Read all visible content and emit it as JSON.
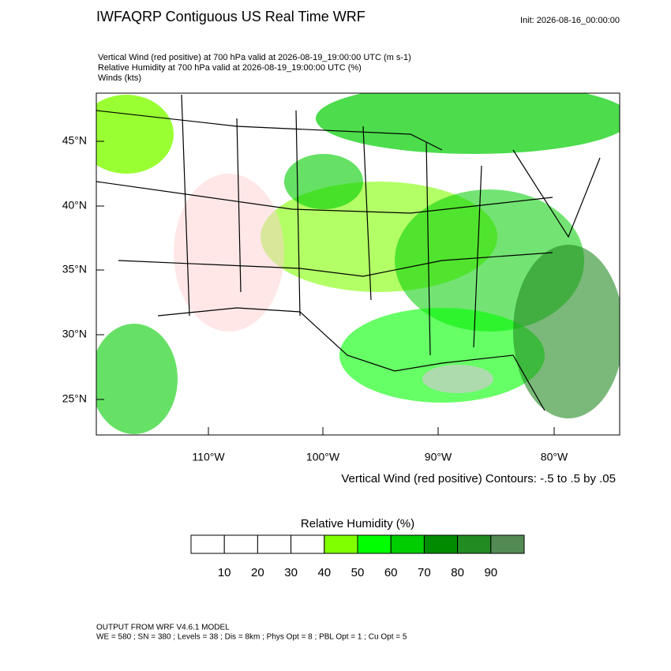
{
  "header": {
    "title": "IWFAQRP Contiguous US Real Time WRF",
    "init": "Init: 2026-08-16_00:00:00"
  },
  "subtitles": [
    "Vertical Wind (red positive) at 700 hPa valid at 2026-08-19_19:00:00 UTC   (m s-1)",
    "Relative Humidity at 700 hPa valid at 2026-08-19_19:00:00 UTC   (%)",
    "Winds   (kts)"
  ],
  "map": {
    "lat_labels": [
      "45°N",
      "40°N",
      "35°N",
      "30°N",
      "25°N"
    ],
    "lon_labels": [
      "110°W",
      "100°W",
      "90°W",
      "80°W"
    ],
    "contour_note": "Vertical Wind (red positive) Contours: -.5 to .5 by .05"
  },
  "colorbar": {
    "title": "Relative Humidity  (%)",
    "colors": [
      "#ffffff",
      "#ffffff",
      "#ffffff",
      "#ffffff",
      "#80ff00",
      "#00ff00",
      "#00cd00",
      "#008b00",
      "#228b22",
      "#548b54"
    ],
    "labels": [
      10,
      20,
      30,
      40,
      50,
      60,
      70,
      80,
      90
    ]
  },
  "footer": {
    "lines": [
      "OUTPUT FROM WRF V4.6.1 MODEL",
      "WE = 580 ; SN = 380 ; Levels = 38 ; Dis = 8km ; Phys Opt = 8 ; PBL Opt = 1 ; Cu Opt = 5"
    ]
  }
}
